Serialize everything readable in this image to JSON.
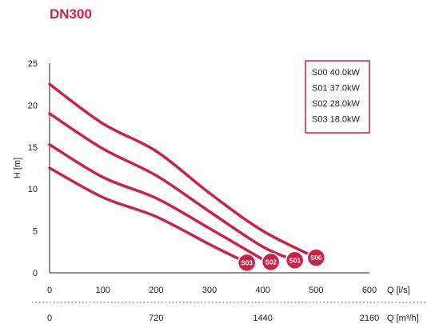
{
  "title": "DN300",
  "chart_data": {
    "type": "line",
    "title": "DN300",
    "xlabel": "Q [l/s]",
    "ylabel": "H [m]",
    "xlim": [
      0,
      600
    ],
    "ylim": [
      0,
      25
    ],
    "x_ticks": [
      "0",
      "100",
      "200",
      "300",
      "400",
      "500",
      "600"
    ],
    "y_ticks": [
      "0",
      "5",
      "10",
      "15",
      "20",
      "25"
    ],
    "secondary_x_axis": {
      "label": "Q [m³/h]",
      "ticks": [
        {
          "value": 0,
          "label": "0"
        },
        {
          "value": 720,
          "label": "720"
        },
        {
          "value": 1440,
          "label": "1440"
        },
        {
          "value": 2160,
          "label": "2160"
        }
      ],
      "position": "bottom, below dotted separator"
    },
    "grid": false,
    "legend": {
      "placement": "top-right",
      "entries": [
        "S00 40.0kW",
        "S01 37.0kW",
        "S02 28.0kW",
        "S03 18.0kW"
      ]
    },
    "line_color": "#c8234a",
    "series": [
      {
        "name": "S00",
        "x": [
          0,
          100,
          200,
          300,
          400,
          500
        ],
        "y": [
          22.5,
          17.8,
          14.5,
          9.5,
          5.0,
          1.8
        ]
      },
      {
        "name": "S01",
        "x": [
          0,
          100,
          200,
          300,
          400,
          460
        ],
        "y": [
          19.0,
          14.8,
          11.6,
          7.3,
          3.1,
          1.5
        ]
      },
      {
        "name": "S02",
        "x": [
          0,
          100,
          200,
          300,
          400,
          415
        ],
        "y": [
          15.3,
          11.4,
          8.9,
          5.3,
          1.6,
          1.3
        ]
      },
      {
        "name": "S03",
        "x": [
          0,
          100,
          200,
          300,
          370
        ],
        "y": [
          12.5,
          9.0,
          6.7,
          3.4,
          1.2
        ]
      }
    ]
  }
}
